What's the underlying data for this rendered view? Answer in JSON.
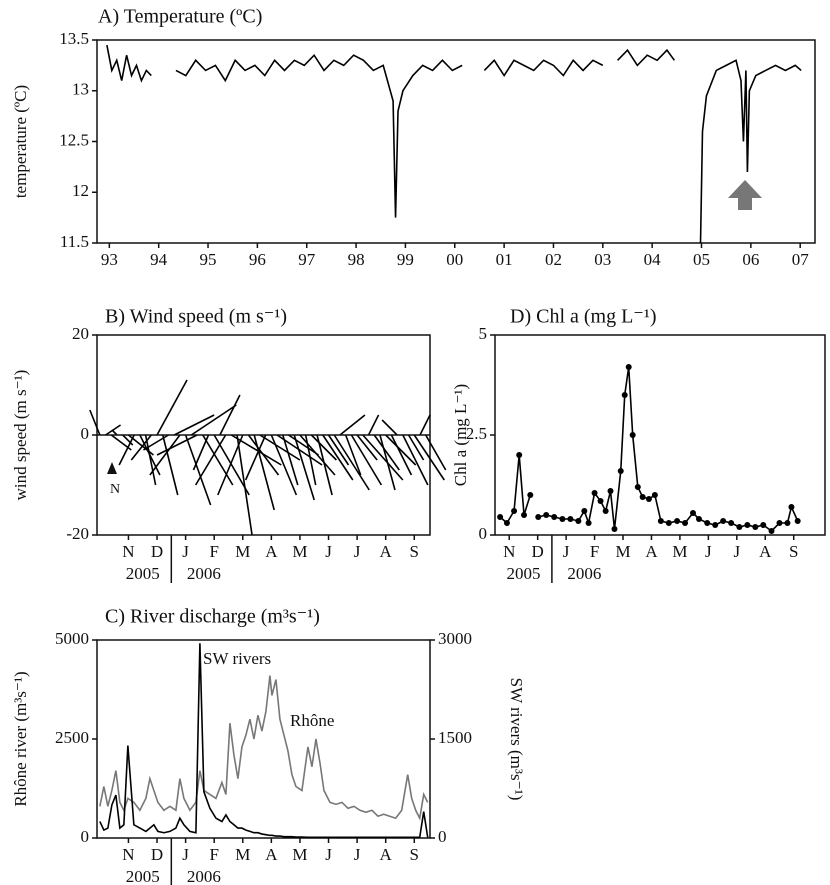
{
  "chart_data": [
    {
      "type": "line",
      "title": "A) Temperature (ºC)",
      "y_label": "temperature (ºC)",
      "color": "#000000",
      "x": [
        1993.45,
        1993.55,
        1993.65,
        1993.75,
        1993.85,
        1993.95,
        1994.05,
        1994.15,
        1994.25,
        1994.35,
        1994.6,
        1994.85,
        1995.05,
        1995.25,
        1995.45,
        1995.65,
        1995.85,
        1996.05,
        1996.25,
        1996.45,
        1996.65,
        1996.85,
        1997.05,
        1997.25,
        1997.45,
        1997.65,
        1997.85,
        1998.05,
        1998.25,
        1998.45,
        1998.65,
        1998.85,
        1999.05,
        1999.25,
        1999.3,
        1999.35,
        1999.45,
        1999.65,
        1999.85,
        2000.05,
        2000.25,
        2000.45,
        2000.65,
        2000.9,
        2001.1,
        2001.3,
        2001.5,
        2001.7,
        2001.9,
        2002.1,
        2002.3,
        2002.5,
        2002.7,
        2002.9,
        2003.1,
        2003.3,
        2003.5,
        2003.65,
        2003.8,
        2004.0,
        2004.2,
        2004.4,
        2004.6,
        2004.8,
        2004.95,
        2005.2,
        2005.48,
        2005.52,
        2005.6,
        2005.8,
        2006.0,
        2006.2,
        2006.3,
        2006.35,
        2006.4,
        2006.43,
        2006.47,
        2006.6,
        2006.8,
        2007.0,
        2007.2,
        2007.4,
        2007.52
      ],
      "values": [
        13.45,
        13.2,
        13.3,
        13.1,
        13.35,
        13.15,
        13.25,
        13.1,
        13.2,
        13.15,
        null,
        13.2,
        13.15,
        13.3,
        13.2,
        13.25,
        13.1,
        13.3,
        13.2,
        13.25,
        13.15,
        13.3,
        13.2,
        13.3,
        13.25,
        13.35,
        13.2,
        13.3,
        13.25,
        13.35,
        13.3,
        13.2,
        13.25,
        12.9,
        11.75,
        12.8,
        13.0,
        13.15,
        13.25,
        13.2,
        13.3,
        13.2,
        13.25,
        null,
        13.2,
        13.3,
        13.15,
        13.3,
        13.25,
        13.2,
        13.3,
        13.25,
        13.15,
        13.3,
        13.2,
        13.3,
        13.25,
        null,
        13.3,
        13.4,
        13.25,
        13.35,
        13.3,
        13.4,
        13.3,
        null,
        11.5,
        12.6,
        12.95,
        13.2,
        13.25,
        13.3,
        13.1,
        12.5,
        13.2,
        12.2,
        13.0,
        13.15,
        13.2,
        13.25,
        13.2,
        13.25,
        13.2
      ],
      "xlim": [
        1993.25,
        2007.8
      ],
      "xticks": [
        {
          "value": 1993.5,
          "label": "93"
        },
        {
          "value": 1994.5,
          "label": "94"
        },
        {
          "value": 1995.5,
          "label": "95"
        },
        {
          "value": 1996.5,
          "label": "96"
        },
        {
          "value": 1997.5,
          "label": "97"
        },
        {
          "value": 1998.5,
          "label": "98"
        },
        {
          "value": 1999.5,
          "label": "99"
        },
        {
          "value": 2000.5,
          "label": "00"
        },
        {
          "value": 2001.5,
          "label": "01"
        },
        {
          "value": 2002.5,
          "label": "02"
        },
        {
          "value": 2003.5,
          "label": "03"
        },
        {
          "value": 2004.5,
          "label": "04"
        },
        {
          "value": 2005.5,
          "label": "05"
        },
        {
          "value": 2006.5,
          "label": "06"
        },
        {
          "value": 2007.5,
          "label": "07"
        }
      ],
      "ylim": [
        11.5,
        13.5
      ],
      "yticks": [
        11.5,
        12,
        12.5,
        13,
        13.5
      ]
    },
    {
      "type": "stick",
      "title": "B) Wind speed (m s⁻¹)",
      "y_label": "wind speed (m s⁻¹)",
      "color": "#000000",
      "north_label": "N",
      "x": [
        0.5,
        0.7,
        0.9,
        1.1,
        1.3,
        1.5,
        1.7,
        1.9,
        2.1,
        2.3,
        2.5,
        2.7,
        2.9,
        3.1,
        3.3,
        3.5,
        3.7,
        3.9,
        4.1,
        4.3,
        4.5,
        4.7,
        4.9,
        5.1,
        5.3,
        5.5,
        5.7,
        5.9,
        6.1,
        6.3,
        6.5,
        6.7,
        6.9,
        7.1,
        7.3,
        7.5,
        7.7,
        7.9,
        8.1,
        8.3,
        8.5,
        8.7,
        8.9,
        9.1,
        9.3,
        9.5,
        9.7,
        9.9,
        10.1,
        10.3,
        10.5,
        10.7,
        10.9,
        11.1,
        11.3,
        11.5,
        11.7,
        11.9
      ],
      "u": [
        -2,
        3,
        4,
        -1,
        2,
        5,
        -3,
        4,
        2,
        -4,
        6,
        3,
        -5,
        8,
        -6,
        5,
        9,
        -8,
        6,
        -3,
        7,
        4,
        -6,
        10,
        3,
        -5,
        6,
        4,
        8,
        -4,
        5,
        9,
        3,
        6,
        4,
        7,
        2,
        5,
        3,
        6,
        4,
        7,
        5,
        3,
        6,
        4,
        8,
        2,
        5,
        3,
        6,
        4,
        -3,
        5,
        3,
        6,
        2,
        4
      ],
      "v": [
        5,
        2,
        -3,
        1,
        -2,
        -4,
        -6,
        -8,
        -10,
        -5,
        11,
        -12,
        -3,
        4,
        -8,
        -14,
        6,
        -4,
        -10,
        -7,
        -12,
        8,
        -10,
        -6,
        -20,
        -12,
        -8,
        -15,
        -5,
        -9,
        -12,
        -6,
        -10,
        -4,
        -13,
        -8,
        -10,
        -5,
        -12,
        -9,
        -6,
        -11,
        4,
        -8,
        -10,
        -5,
        -9,
        4,
        -7,
        -11,
        -6,
        -8,
        3,
        -10,
        -5,
        -9,
        4,
        -7
      ],
      "xlim": [
        0.4,
        12.05
      ],
      "xticks": [
        {
          "value": 1.5,
          "label": "N"
        },
        {
          "value": 2.5,
          "label": "D"
        },
        {
          "value": 3.5,
          "label": "J"
        },
        {
          "value": 4.5,
          "label": "F"
        },
        {
          "value": 5.5,
          "label": "M"
        },
        {
          "value": 6.5,
          "label": "A"
        },
        {
          "value": 7.5,
          "label": "M"
        },
        {
          "value": 8.5,
          "label": "J"
        },
        {
          "value": 9.5,
          "label": "J"
        },
        {
          "value": 10.5,
          "label": "A"
        },
        {
          "value": 11.5,
          "label": "S"
        }
      ],
      "year_labels": [
        "2005",
        "2006"
      ],
      "ylim": [
        -20,
        20
      ],
      "yticks": [
        -20,
        0,
        20
      ]
    },
    {
      "type": "line",
      "title": "C) River discharge (m³s⁻¹)",
      "y_label": "Rhône river (m³s⁻¹)",
      "y2_label": "SW rivers (m³s⁻¹)",
      "x": [
        0.5,
        0.64,
        0.78,
        0.92,
        1.06,
        1.2,
        1.34,
        1.48,
        1.69,
        1.9,
        2.11,
        2.25,
        2.39,
        2.53,
        2.74,
        2.95,
        3.16,
        3.3,
        3.44,
        3.65,
        3.86,
        4.0,
        4.14,
        4.35,
        4.56,
        4.77,
        4.91,
        5.05,
        5.19,
        5.33,
        5.47,
        5.61,
        5.75,
        5.89,
        6.03,
        6.17,
        6.31,
        6.45,
        6.52,
        6.66,
        6.8,
        6.94,
        7.08,
        7.22,
        7.36,
        7.57,
        7.78,
        7.92,
        8.06,
        8.2,
        8.34,
        8.55,
        8.76,
        8.97,
        9.18,
        9.39,
        9.6,
        9.81,
        10.02,
        10.23,
        10.43,
        10.64,
        10.85,
        11.06,
        11.27,
        11.41,
        11.55,
        11.69,
        11.83,
        11.97
      ],
      "series": [
        {
          "name": "Rhône",
          "color": "#777777",
          "values": [
            800,
            1300,
            800,
            1200,
            1700,
            900,
            700,
            1000,
            900,
            700,
            1000,
            1500,
            1200,
            900,
            700,
            800,
            700,
            1500,
            1000,
            700,
            900,
            1700,
            1200,
            1100,
            1000,
            1400,
            1100,
            2900,
            2100,
            1500,
            2300,
            2600,
            3000,
            2500,
            3100,
            2700,
            3200,
            4100,
            3600,
            4000,
            3000,
            2600,
            2200,
            1600,
            1300,
            1200,
            2300,
            1800,
            2500,
            1900,
            1200,
            900,
            850,
            900,
            750,
            800,
            700,
            650,
            700,
            550,
            600,
            550,
            500,
            700,
            1600,
            1000,
            700,
            500,
            1100,
            900
          ]
        },
        {
          "name": "SW rivers",
          "color": "#000000",
          "axis": "y2",
          "values": [
            250,
            120,
            150,
            500,
            650,
            150,
            200,
            1400,
            200,
            150,
            100,
            150,
            200,
            100,
            80,
            100,
            150,
            300,
            200,
            100,
            80,
            2950,
            700,
            450,
            300,
            250,
            350,
            250,
            200,
            150,
            150,
            120,
            100,
            80,
            80,
            60,
            50,
            40,
            40,
            30,
            30,
            20,
            20,
            20,
            15,
            15,
            10,
            10,
            10,
            10,
            10,
            10,
            10,
            10,
            10,
            10,
            10,
            10,
            10,
            10,
            10,
            10,
            10,
            10,
            10,
            10,
            10,
            10,
            400,
            10
          ]
        }
      ],
      "xlim": [
        0.4,
        12.05
      ],
      "xticks": [
        {
          "value": 1.5,
          "label": "N"
        },
        {
          "value": 2.5,
          "label": "D"
        },
        {
          "value": 3.5,
          "label": "J"
        },
        {
          "value": 4.5,
          "label": "F"
        },
        {
          "value": 5.5,
          "label": "M"
        },
        {
          "value": 6.5,
          "label": "A"
        },
        {
          "value": 7.5,
          "label": "M"
        },
        {
          "value": 8.5,
          "label": "J"
        },
        {
          "value": 9.5,
          "label": "J"
        },
        {
          "value": 10.5,
          "label": "A"
        },
        {
          "value": 11.5,
          "label": "S"
        }
      ],
      "year_labels": [
        "2005",
        "2006"
      ],
      "ylim": [
        0,
        5000
      ],
      "yticks": [
        0,
        2500,
        5000
      ],
      "y2lim": [
        0,
        3000
      ],
      "y2ticks": [
        0,
        1500,
        3000
      ]
    },
    {
      "type": "line",
      "title": "D) Chl a (mg L⁻¹)",
      "y_label": "Chl a (mg L⁻¹)",
      "color": "#000000",
      "markers": true,
      "x": [
        1.18,
        1.42,
        1.67,
        1.85,
        2.02,
        2.24,
        null,
        2.52,
        2.8,
        3.08,
        3.37,
        3.65,
        3.93,
        4.14,
        4.29,
        4.5,
        4.71,
        4.89,
        5.06,
        5.2,
        5.42,
        5.56,
        5.7,
        5.84,
        6.02,
        6.19,
        6.41,
        6.62,
        6.83,
        7.11,
        7.4,
        7.68,
        7.96,
        8.17,
        8.46,
        8.74,
        9.02,
        9.3,
        9.59,
        9.87,
        10.15,
        10.43,
        10.72,
        11.0,
        11.28,
        11.42,
        11.64
      ],
      "values": [
        0.45,
        0.3,
        0.6,
        2.0,
        0.5,
        1.0,
        null,
        0.45,
        0.5,
        0.45,
        0.4,
        0.4,
        0.35,
        0.6,
        0.3,
        1.05,
        0.85,
        0.6,
        1.1,
        0.15,
        1.6,
        3.5,
        4.2,
        2.5,
        1.2,
        0.95,
        0.9,
        1.0,
        0.35,
        0.3,
        0.35,
        0.3,
        0.55,
        0.4,
        0.3,
        0.25,
        0.35,
        0.3,
        0.2,
        0.25,
        0.2,
        0.25,
        0.1,
        0.3,
        0.3,
        0.7,
        0.35
      ],
      "xlim": [
        1,
        12.6
      ],
      "xticks": [
        {
          "value": 1.5,
          "label": "N"
        },
        {
          "value": 2.5,
          "label": "D"
        },
        {
          "value": 3.5,
          "label": "J"
        },
        {
          "value": 4.5,
          "label": "F"
        },
        {
          "value": 5.5,
          "label": "M"
        },
        {
          "value": 6.5,
          "label": "A"
        },
        {
          "value": 7.5,
          "label": "M"
        },
        {
          "value": 8.5,
          "label": "J"
        },
        {
          "value": 9.5,
          "label": "J"
        },
        {
          "value": 10.5,
          "label": "A"
        },
        {
          "value": 11.5,
          "label": "S"
        }
      ],
      "year_labels": [
        "2005",
        "2006"
      ],
      "ylim": [
        0,
        5
      ],
      "yticks": [
        0,
        {
          "value": 2.5,
          "label": "2.5"
        },
        5
      ]
    }
  ]
}
